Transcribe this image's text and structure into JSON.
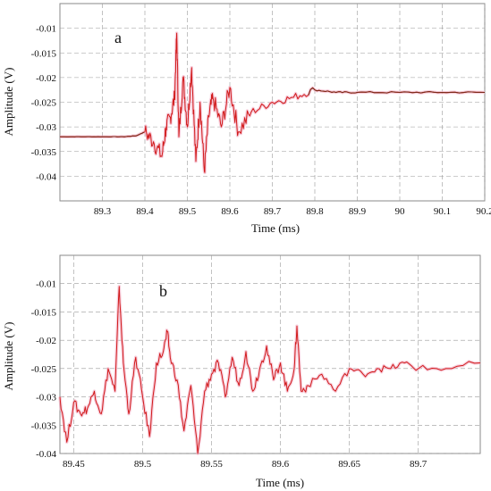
{
  "colors": {
    "signal": "#d11a1a",
    "signal_dark": "#7a2a18",
    "halo": "#f3b8cc",
    "grid": "#9a9a9a",
    "frame": "#8a8a8a"
  },
  "chart_data": [
    {
      "type": "line",
      "panel_label": "a",
      "xlabel": "Time (ms)",
      "ylabel": "Amplitude (V)",
      "xlim": [
        89.2,
        90.2
      ],
      "ylim": [
        -0.045,
        -0.005
      ],
      "x_ticks": [
        89.3,
        89.4,
        89.5,
        89.6,
        89.7,
        89.8,
        89.9,
        90,
        90.1,
        90.2
      ],
      "x_tick_labels": [
        "89.3",
        "89.4",
        "89.5",
        "89.6",
        "89.7",
        "89.8",
        "89.9",
        "90",
        "90.1",
        "90.2"
      ],
      "y_ticks": [
        -0.01,
        -0.015,
        -0.02,
        -0.025,
        -0.03,
        -0.035,
        -0.04
      ],
      "y_tick_labels": [
        "-0.01",
        "-0.015",
        "-0.02",
        "-0.025",
        "-0.03",
        "-0.035",
        "-0.04"
      ],
      "grid": true,
      "series": [
        {
          "x": [
            89.2,
            89.25,
            89.3,
            89.35,
            89.38,
            89.4,
            89.42,
            89.44,
            89.45,
            89.46,
            89.47,
            89.475,
            89.48,
            89.49,
            89.5,
            89.51,
            89.52,
            89.53,
            89.54,
            89.55,
            89.56,
            89.58,
            89.6,
            89.62,
            89.65,
            89.7,
            89.75,
            89.8,
            89.85,
            89.9,
            90.0,
            90.1,
            90.2
          ],
          "y": [
            -0.032,
            -0.032,
            -0.032,
            -0.032,
            -0.0318,
            -0.031,
            -0.033,
            -0.036,
            -0.03,
            -0.028,
            -0.024,
            -0.011,
            -0.032,
            -0.02,
            -0.03,
            -0.018,
            -0.037,
            -0.025,
            -0.039,
            -0.028,
            -0.024,
            -0.03,
            -0.022,
            -0.031,
            -0.027,
            -0.025,
            -0.024,
            -0.0225,
            -0.023,
            -0.023,
            -0.023,
            -0.023,
            -0.023
          ]
        }
      ]
    },
    {
      "type": "line",
      "panel_label": "b",
      "xlabel": "Time (ms)",
      "ylabel": "Amplitude (V)",
      "xlim": [
        89.44,
        89.745
      ],
      "ylim": [
        -0.04,
        -0.005
      ],
      "x_ticks": [
        89.45,
        89.5,
        89.55,
        89.6,
        89.65,
        89.7
      ],
      "x_tick_labels": [
        "89.45",
        "89.5",
        "89.55",
        "89.6",
        "89.65",
        "89.7"
      ],
      "y_ticks": [
        -0.01,
        -0.015,
        -0.02,
        -0.025,
        -0.03,
        -0.035,
        -0.04
      ],
      "y_tick_labels": [
        "-0.01",
        "-0.015",
        "-0.02",
        "-0.025",
        "-0.03",
        "-0.035",
        "-0.04"
      ],
      "grid": true,
      "series": [
        {
          "x": [
            89.44,
            89.445,
            89.45,
            89.455,
            89.46,
            89.465,
            89.47,
            89.475,
            89.48,
            89.483,
            89.486,
            89.49,
            89.495,
            89.5,
            89.505,
            89.51,
            89.515,
            89.518,
            89.52,
            89.525,
            89.53,
            89.535,
            89.54,
            89.545,
            89.55,
            89.555,
            89.56,
            89.565,
            89.57,
            89.575,
            89.58,
            89.585,
            89.59,
            89.595,
            89.6,
            89.605,
            89.61,
            89.612,
            89.615,
            89.62,
            89.63,
            89.64,
            89.65,
            89.66,
            89.67,
            89.68,
            89.69,
            89.7,
            89.72,
            89.745
          ],
          "y": [
            -0.03,
            -0.038,
            -0.031,
            -0.033,
            -0.032,
            -0.029,
            -0.033,
            -0.025,
            -0.029,
            -0.0105,
            -0.024,
            -0.033,
            -0.023,
            -0.03,
            -0.037,
            -0.024,
            -0.022,
            -0.0185,
            -0.023,
            -0.027,
            -0.036,
            -0.028,
            -0.04,
            -0.029,
            -0.026,
            -0.024,
            -0.03,
            -0.023,
            -0.028,
            -0.022,
            -0.029,
            -0.025,
            -0.021,
            -0.027,
            -0.024,
            -0.029,
            -0.025,
            -0.0175,
            -0.029,
            -0.028,
            -0.026,
            -0.029,
            -0.025,
            -0.026,
            -0.025,
            -0.025,
            -0.024,
            -0.025,
            -0.025,
            -0.024
          ]
        }
      ]
    }
  ]
}
